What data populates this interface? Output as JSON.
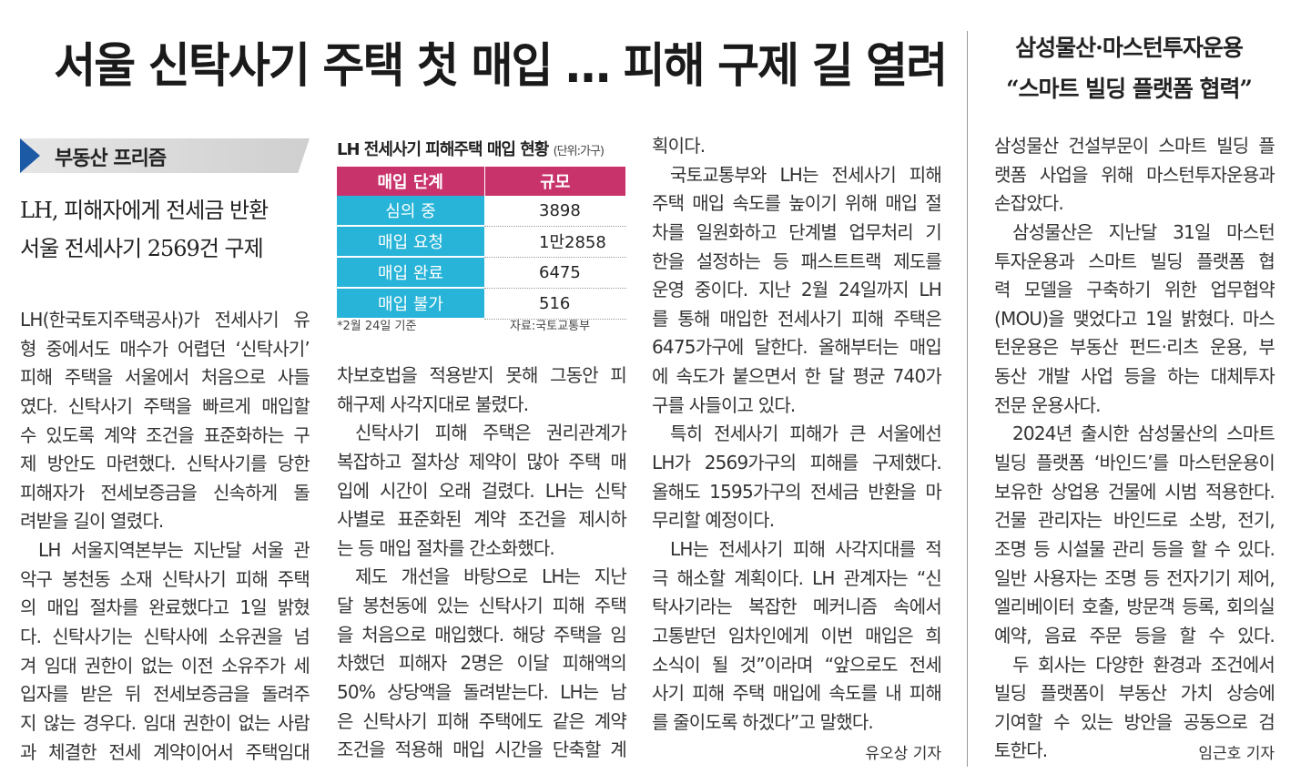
{
  "headline": "서울 신탁사기 주택 첫 매입 … 피해 구제 길 열려",
  "section_label": "부동산 프리즘",
  "subheadline": [
    "LH, 피해자에게 전세금 반환",
    "서울 전세사기 2569건 구제"
  ],
  "columns": [
    {
      "paragraphs": [
        [
          "LH(한국토지주택공사)가 전세사기 유",
          "형 중에서도 매수가 어렵던 ‘신탁사기’",
          "피해 주택을 서울에서 처음으로 사들",
          "였다. 신탁사기 주택을 빠르게 매입할",
          "수 있도록 계약 조건을 표준화하는 구",
          "제 방안도 마련했다. 신탁사기를 당한",
          "피해자가 전세보증금을 신속하게 돌",
          "려받을 길이 열렸다."
        ],
        [
          "LH 서울지역본부는 지난달 서울 관",
          "악구 봉천동 소재 신탁사기 피해 주택",
          "의 매입 절차를 완료했다고 1일 밝혔",
          "다. 신탁사기는 신탁사에 소유권을 넘",
          "겨 임대 권한이 없는 이전 소유주가 세",
          "입자를 받은 뒤 전세보증금을 돌려주",
          "지 않는 경우다. 임대 권한이 없는 사람",
          "과 체결한 전세 계약이어서 주택임대"
        ]
      ]
    },
    {
      "paragraphs": [
        [
          "차보호법을 적용받지 못해 그동안 피",
          "해구제 사각지대로 불렸다."
        ],
        [
          "신탁사기 피해 주택은 권리관계가",
          "복잡하고 절차상 제약이 많아 주택 매",
          "입에 시간이 오래 걸렸다. LH는 신탁",
          "사별로 표준화된 계약 조건을 제시하",
          "는 등 매입 절차를 간소화했다."
        ],
        [
          "제도 개선을 바탕으로 LH는 지난",
          "달 봉천동에 있는 신탁사기 피해 주택",
          "을 처음으로 매입했다. 해당 주택을 임",
          "차했던 피해자 2명은 이달 피해액의",
          "50% 상당액을 돌려받는다. LH는 남",
          "은 신탁사기 피해 주택에도 같은 계약",
          "조건을 적용해 매입 시간을 단축할 계"
        ]
      ]
    },
    {
      "paragraphs": [
        [
          "획이다."
        ],
        [
          "국토교통부와 LH는 전세사기 피해",
          "주택 매입 속도를 높이기 위해 매입 절",
          "차를 일원화하고 단계별 업무처리 기",
          "한을 설정하는 등 패스트트랙 제도를",
          "운영 중이다. 지난 2월 24일까지 LH",
          "를 통해 매입한 전세사기 피해 주택은",
          "6475가구에 달한다. 올해부터는 매입",
          "에 속도가 붙으면서 한 달 평균 740가",
          "구를 사들이고 있다."
        ],
        [
          "특히 전세사기 피해가 큰 서울에선",
          "LH가 2569가구의 피해를 구제했다.",
          "올해도 1595가구의 전세금 반환을 마",
          "무리할 예정이다."
        ],
        [
          "LH는 전세사기 피해 사각지대를 적",
          "극 해소할 계획이다. LH 관계자는 “신",
          "탁사기라는 복잡한 메커니즘 속에서",
          "고통받던 임차인에게 이번 매입은 희",
          "소식이 될 것”이라며 “앞으로도 전세",
          "사기 피해 주택 매입에 속도를 내 피해",
          "를 줄이도록 하겠다”고 말했다."
        ]
      ]
    }
  ],
  "table": {
    "title": "LH 전세사기 피해주택 매입 현황",
    "unit": "(단위:가구)",
    "header": [
      "매입 단계",
      "규모"
    ],
    "rows": [
      [
        "심의 중",
        "3898"
      ],
      [
        "매입 요청",
        "1만2858"
      ],
      [
        "매입 완료",
        "6475"
      ],
      [
        "매입 불가",
        "516"
      ]
    ],
    "note": "*2월 24일 기준",
    "source": "자료:국토교통부"
  },
  "byline": "유오상 기자",
  "side_article": {
    "headline": [
      "삼성물산·마스턴투자운용",
      "“스마트 빌딩 플랫폼 협력”"
    ],
    "paragraphs": [
      [
        "삼성물산 건설부문이 스마트 빌딩 플",
        "랫폼 사업을 위해 마스턴투자운용과",
        "손잡았다."
      ],
      [
        "삼성물산은 지난달 31일 마스턴",
        "투자운용과 스마트 빌딩 플랫폼 협",
        "력 모델을 구축하기 위한 업무협약",
        "(MOU)을 맺었다고 1일 밝혔다. 마스",
        "턴운용은 부동산 펀드·리츠 운용, 부",
        "동산 개발 사업 등을 하는 대체투자",
        "전문 운용사다."
      ],
      [
        "2024년 출시한 삼성물산의 스마트",
        "빌딩 플랫폼 ‘바인드’를 마스턴운용이",
        "보유한 상업용 건물에 시범 적용한다.",
        "건물 관리자는 바인드로 소방, 전기,",
        "조명 등 시설물 관리 등을 할 수 있다.",
        "일반 사용자는 조명 등 전자기기 제어,",
        "엘리베이터 호출, 방문객 등록, 회의실",
        "예약, 음료 주문 등을 할 수 있다."
      ],
      [
        "두 회사는 다양한 환경과 조건에서",
        "빌딩 플랫폼이 부동산 가치 상승에",
        "기여할 수 있는 방안을 공동으로 검",
        "토한다."
      ]
    ],
    "byline": "임근호 기자"
  }
}
